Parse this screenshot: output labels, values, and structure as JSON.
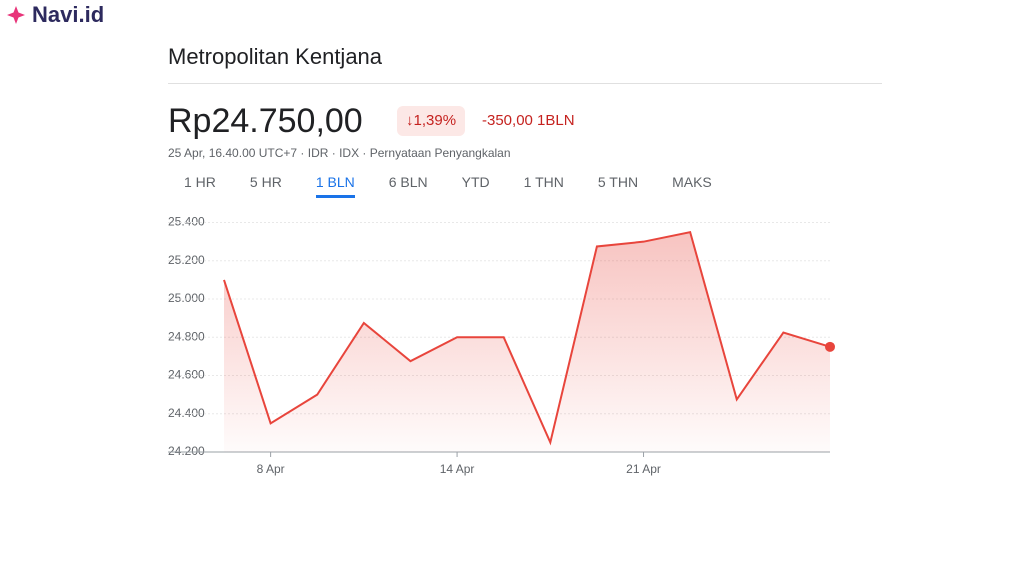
{
  "logo": "Navi.id",
  "header": {
    "title": "Metropolitan Kentjana",
    "price": "Rp24.750,00",
    "change_percent": "↓1,39%",
    "change": "-350,00 1BLN",
    "meta": "25 Apr, 16.40.00 UTC+7 · IDR · IDX · Pernyataan Penyangkalan"
  },
  "tabs": [
    "1 HR",
    "5 HR",
    "1 BLN",
    "6 BLN",
    "YTD",
    "1 THN",
    "5 THN",
    "MAKS"
  ],
  "chart_data": {
    "type": "area",
    "categories": [
      null,
      "8 Apr",
      null,
      null,
      null,
      "14 Apr",
      null,
      null,
      null,
      "21 Apr",
      null,
      null,
      null,
      null
    ],
    "values": [
      25100,
      24350,
      24500,
      24875,
      24675,
      24800,
      24800,
      24250,
      25275,
      25300,
      25350,
      24475,
      24825,
      24750
    ],
    "color": "#e8453c",
    "ylim": [
      24200,
      25450
    ],
    "yticks": [
      {
        "value": 24200,
        "label": "24.200"
      },
      {
        "value": 24400,
        "label": "24.400"
      },
      {
        "value": 24600,
        "label": "24.600"
      },
      {
        "value": 24800,
        "label": "24.800"
      },
      {
        "value": 25000,
        "label": "25.000"
      },
      {
        "value": 25200,
        "label": "25.200"
      },
      {
        "value": 25400,
        "label": "25.400"
      }
    ],
    "grid": true
  }
}
